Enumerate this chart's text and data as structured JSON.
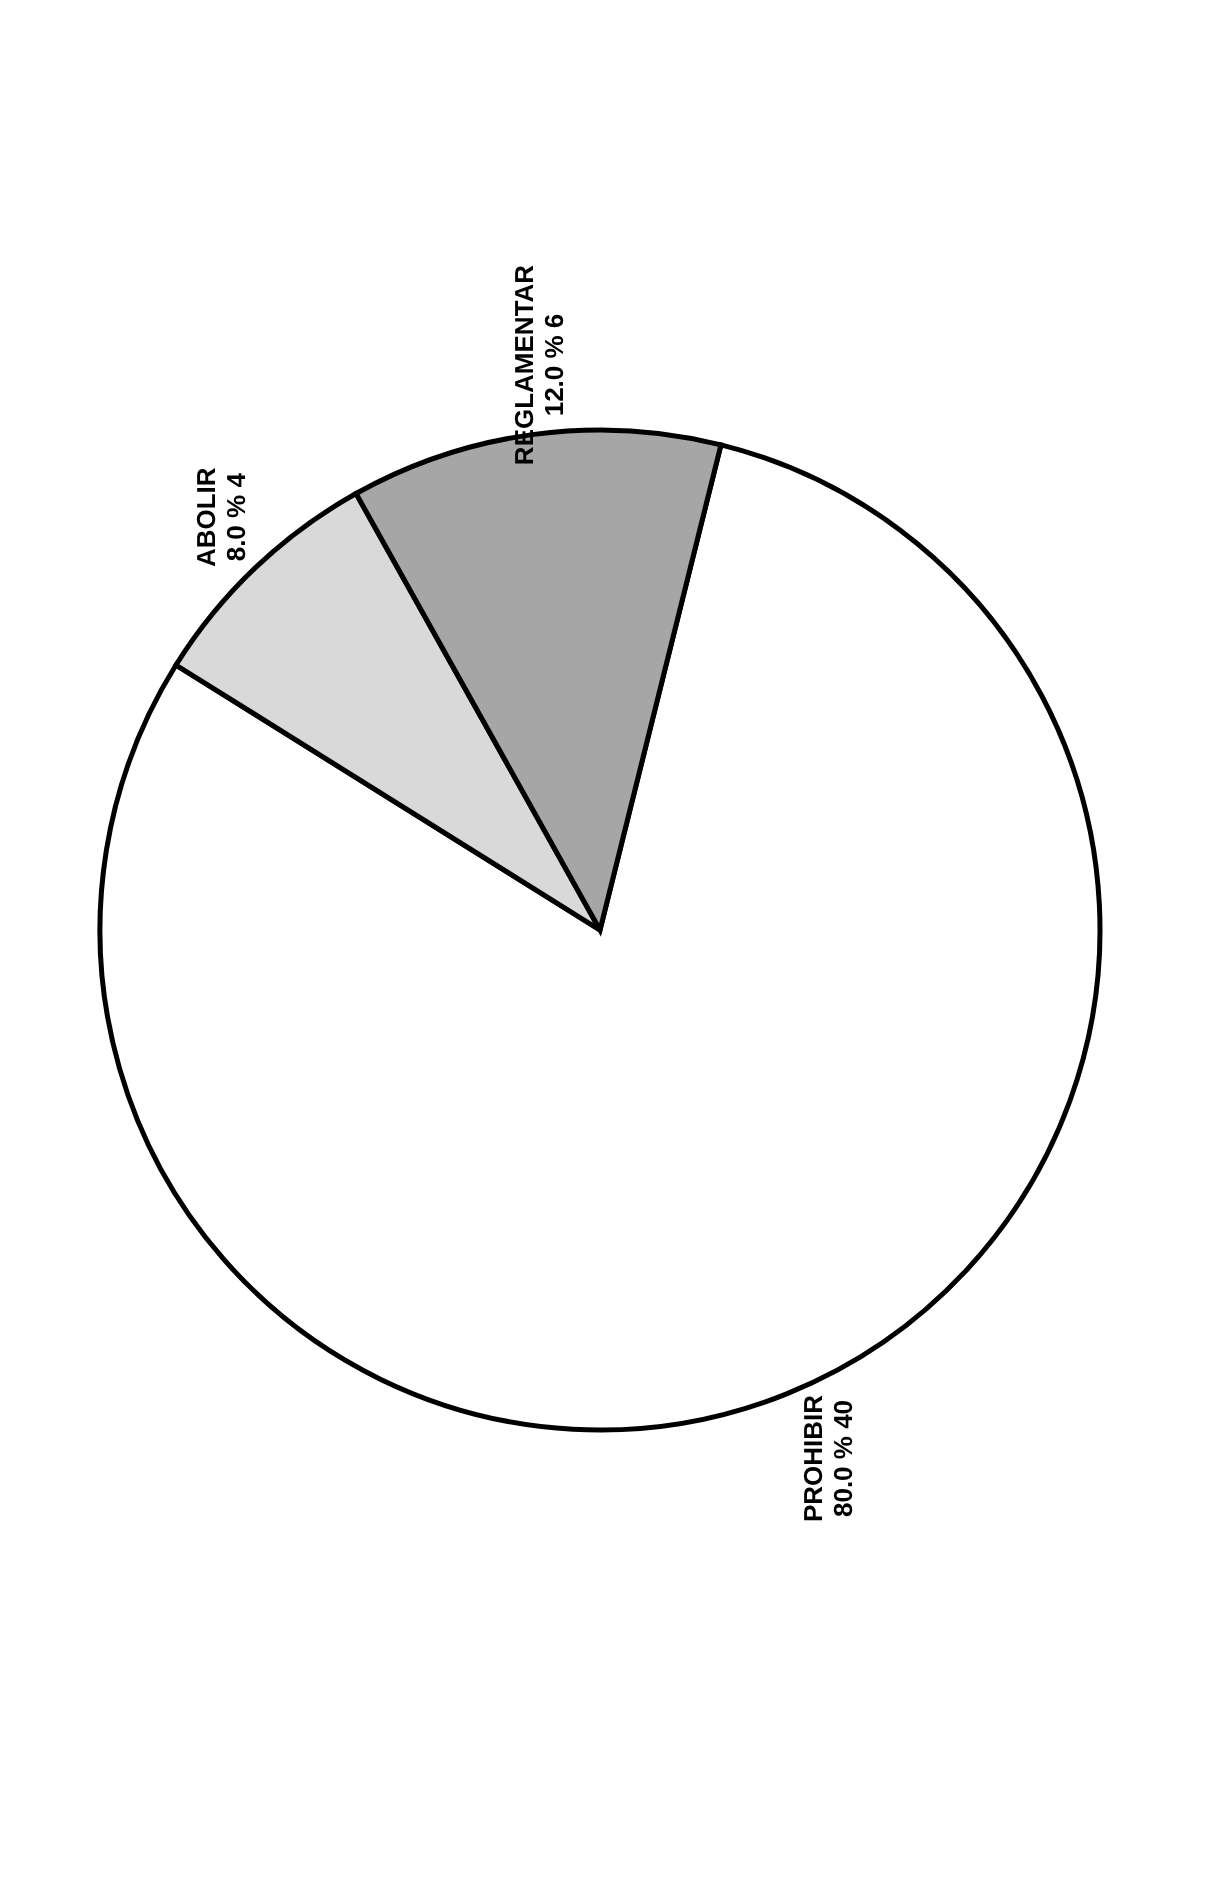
{
  "chart_data": {
    "type": "pie",
    "categories": [
      "PROHIBIR",
      "ABOLIR",
      "REGLAMENTAR"
    ],
    "values": [
      80,
      8,
      12
    ],
    "value_labels": [
      "80.0 %  40",
      "8.0 %  4",
      "12.0 %  6"
    ],
    "colors": [
      "#ffffff",
      "#d9d9d9",
      "#a6a6a6"
    ]
  }
}
